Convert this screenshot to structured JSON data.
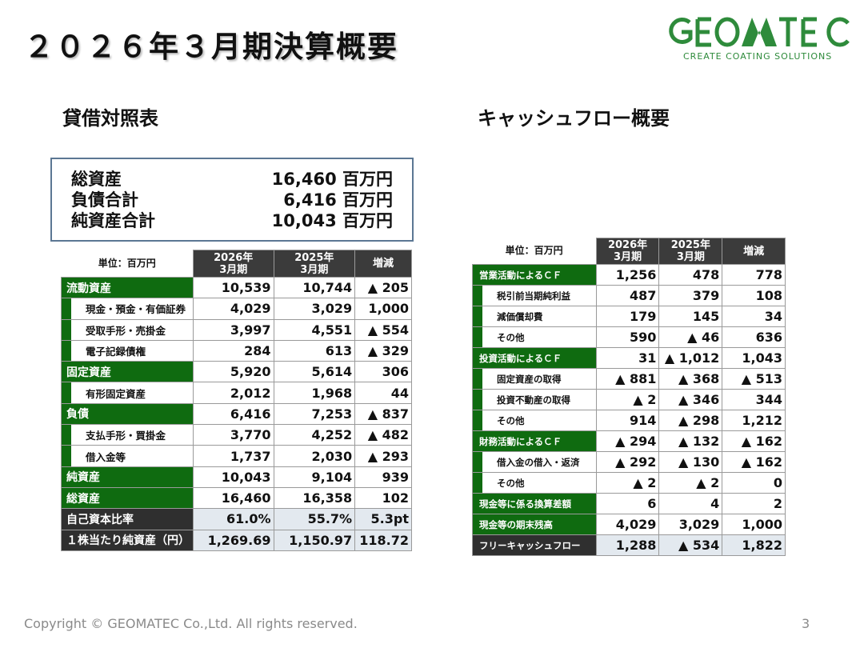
{
  "title": "２０２６年３月期決算概要",
  "logo": {
    "name": "GEOMATEC",
    "tagline": "CREATE COATING SOLUTIONS",
    "color": "#2e8b3b"
  },
  "balance_sheet": {
    "section_title": "貸借対照表",
    "summary": [
      {
        "label": "総資産",
        "value": "16,460 百万円"
      },
      {
        "label": "負債合計",
        "value": "6,416 百万円"
      },
      {
        "label": "純資産合計",
        "value": "10,043 百万円"
      }
    ],
    "unit": "単位：百万円",
    "columns": [
      "2026年\n3月期",
      "2025年\n3月期",
      "増減"
    ],
    "rows": [
      {
        "label": "流動資産",
        "v2026": "10,539",
        "v2025": "10,744",
        "diff": "▲ 205",
        "style": "green"
      },
      {
        "label": "現金・預金・有価証券",
        "v2026": "4,029",
        "v2025": "3,029",
        "diff": "1,000",
        "style": "indent"
      },
      {
        "label": "受取手形・売掛金",
        "v2026": "3,997",
        "v2025": "4,551",
        "diff": "▲ 554",
        "style": "indent"
      },
      {
        "label": "電子記録債権",
        "v2026": "284",
        "v2025": "613",
        "diff": "▲ 329",
        "style": "indent"
      },
      {
        "label": "固定資産",
        "v2026": "5,920",
        "v2025": "5,614",
        "diff": "306",
        "style": "green"
      },
      {
        "label": "有形固定資産",
        "v2026": "2,012",
        "v2025": "1,968",
        "diff": "44",
        "style": "indent"
      },
      {
        "label": "負債",
        "v2026": "6,416",
        "v2025": "7,253",
        "diff": "▲ 837",
        "style": "green"
      },
      {
        "label": "支払手形・買掛金",
        "v2026": "3,770",
        "v2025": "4,252",
        "diff": "▲ 482",
        "style": "indent"
      },
      {
        "label": "借入金等",
        "v2026": "1,737",
        "v2025": "2,030",
        "diff": "▲ 293",
        "style": "indent"
      },
      {
        "label": "純資産",
        "v2026": "10,043",
        "v2025": "9,104",
        "diff": "939",
        "style": "green"
      },
      {
        "label": "総資産",
        "v2026": "16,460",
        "v2025": "16,358",
        "diff": "102",
        "style": "green"
      },
      {
        "label": "自己資本比率",
        "v2026": "61.0%",
        "v2025": "55.7%",
        "diff": "5.3pt",
        "style": "dark"
      },
      {
        "label": "１株当たり純資産（円）",
        "v2026": "1,269.69",
        "v2025": "1,150.97",
        "diff": "118.72",
        "style": "dark"
      }
    ]
  },
  "cash_flow": {
    "section_title": "キャッシュフロー概要",
    "unit": "単位：百万円",
    "columns": [
      "2026年\n3月期",
      "2025年\n3月期",
      "増減"
    ],
    "rows": [
      {
        "label": "営業活動によるＣＦ",
        "v2026": "1,256",
        "v2025": "478",
        "diff": "778",
        "style": "green"
      },
      {
        "label": "税引前当期純利益",
        "v2026": "487",
        "v2025": "379",
        "diff": "108",
        "style": "indent"
      },
      {
        "label": "減価償却費",
        "v2026": "179",
        "v2025": "145",
        "diff": "34",
        "style": "indent"
      },
      {
        "label": "その他",
        "v2026": "590",
        "v2025": "▲ 46",
        "diff": "636",
        "style": "indent"
      },
      {
        "label": "投資活動によるＣＦ",
        "v2026": "31",
        "v2025": "▲ 1,012",
        "diff": "1,043",
        "style": "green"
      },
      {
        "label": "固定資産の取得",
        "v2026": "▲ 881",
        "v2025": "▲ 368",
        "diff": "▲ 513",
        "style": "indent"
      },
      {
        "label": "投資不動産の取得",
        "v2026": "▲ 2",
        "v2025": "▲ 346",
        "diff": "344",
        "style": "indent"
      },
      {
        "label": "その他",
        "v2026": "914",
        "v2025": "▲ 298",
        "diff": "1,212",
        "style": "indent"
      },
      {
        "label": "財務活動によるＣＦ",
        "v2026": "▲ 294",
        "v2025": "▲ 132",
        "diff": "▲ 162",
        "style": "green"
      },
      {
        "label": "借入金の借入・返済",
        "v2026": "▲ 292",
        "v2025": "▲ 130",
        "diff": "▲ 162",
        "style": "indent"
      },
      {
        "label": "その他",
        "v2026": "▲ 2",
        "v2025": "▲ 2",
        "diff": "0",
        "style": "indent"
      },
      {
        "label": "現金等に係る換算差額",
        "v2026": "6",
        "v2025": "4",
        "diff": "2",
        "style": "green"
      },
      {
        "label": "現金等の期末残高",
        "v2026": "4,029",
        "v2025": "3,029",
        "diff": "1,000",
        "style": "green"
      },
      {
        "label": "フリーキャッシュフロー",
        "v2026": "1,288",
        "v2025": "▲ 534",
        "diff": "1,822",
        "style": "dark"
      }
    ]
  },
  "footer": {
    "copyright": "Copyright ©  GEOMATEC Co.,Ltd. All rights reserved.",
    "page": "3"
  }
}
